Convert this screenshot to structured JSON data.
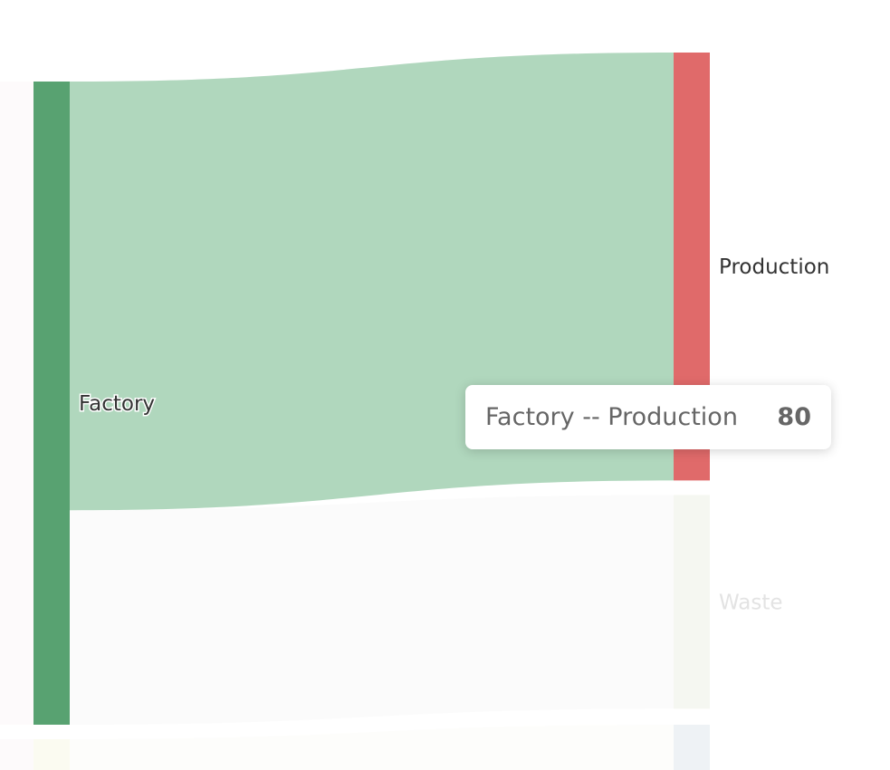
{
  "chart_data": {
    "type": "sankey",
    "nodes": [
      {
        "name": "Factory",
        "color": "#58a271"
      },
      {
        "name": "Production",
        "color": "#e06a6a"
      },
      {
        "name": "Waste",
        "color": "#f5f7f1"
      }
    ],
    "links": [
      {
        "source": "Factory",
        "target": "Production",
        "value": 80,
        "color": "#b0d7bd"
      },
      {
        "source": "Factory",
        "target": "Waste",
        "value": 40,
        "color": "#fbfbfb"
      }
    ],
    "highlighted_link": "Factory -- Production"
  },
  "tooltip": {
    "label": "Factory -- Production",
    "value": "80"
  },
  "colors": {
    "label_active": "#333333",
    "label_dim": "#e3e3e3"
  }
}
